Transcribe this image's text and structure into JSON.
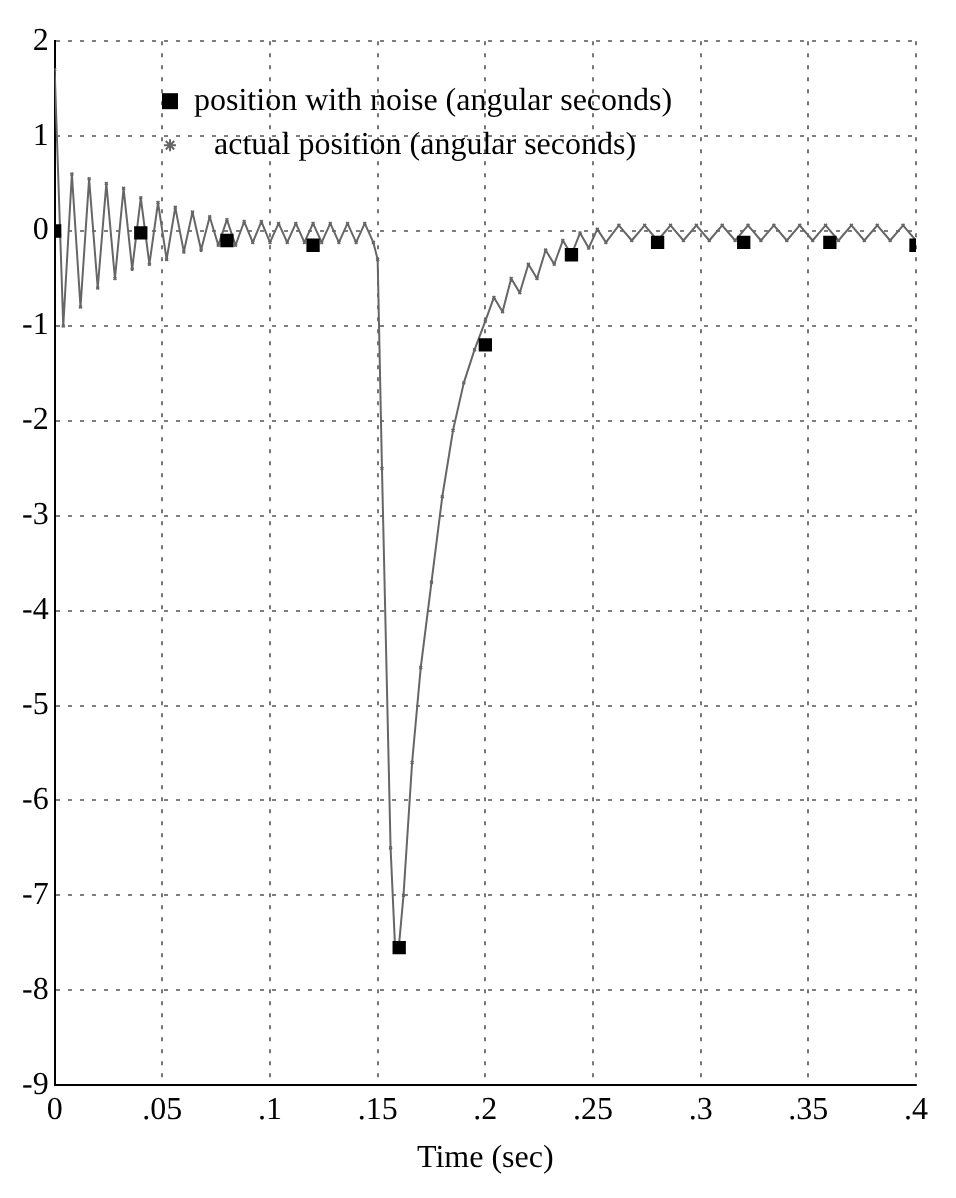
{
  "chart_data": {
    "type": "line",
    "xlabel": "Time (sec)",
    "xlim": [
      0,
      0.4
    ],
    "xticks": [
      0,
      {
        "value": 0.05,
        "label": ".05"
      },
      {
        "value": 0.1,
        "label": ".1"
      },
      {
        "value": 0.15,
        "label": ".15"
      },
      {
        "value": 0.2,
        "label": ".2"
      },
      {
        "value": 0.25,
        "label": ".25"
      },
      {
        "value": 0.3,
        "label": ".3"
      },
      {
        "value": 0.35,
        "label": ".35"
      },
      {
        "value": 0.4,
        "label": ".4"
      }
    ],
    "ylim": [
      -9,
      2
    ],
    "yticks": [
      -9,
      -8,
      -7,
      -6,
      -5,
      -4,
      -3,
      -2,
      -1,
      0,
      1,
      2
    ],
    "grid": true,
    "legend": "top left",
    "series": [
      {
        "name": "position with noise (angular seconds)",
        "type": "scatter",
        "marker": "square",
        "color": "#000000",
        "x": [
          0,
          0.04,
          0.08,
          0.12,
          0.16,
          0.2,
          0.24,
          0.28,
          0.32,
          0.36,
          0.4
        ],
        "values": [
          0,
          -0.02,
          -0.1,
          -0.15,
          -7.55,
          -1.2,
          -0.25,
          -0.12,
          -0.12,
          -0.12,
          -0.15
        ]
      },
      {
        "name": "actual position (angular seconds)",
        "type": "line",
        "marker": "cross",
        "line_style": "solid",
        "color": "#666666",
        "x": [
          0,
          0.004,
          0.008,
          0.012,
          0.016,
          0.02,
          0.024,
          0.028,
          0.032,
          0.036,
          0.04,
          0.044,
          0.048,
          0.052,
          0.056,
          0.06,
          0.064,
          0.068,
          0.072,
          0.076,
          0.08,
          0.084,
          0.088,
          0.092,
          0.096,
          0.1,
          0.104,
          0.108,
          0.112,
          0.116,
          0.12,
          0.124,
          0.128,
          0.132,
          0.136,
          0.14,
          0.144,
          0.148,
          0.15,
          0.152,
          0.156,
          0.158,
          0.16,
          0.162,
          0.166,
          0.17,
          0.175,
          0.18,
          0.185,
          0.19,
          0.195,
          0.2,
          0.204,
          0.208,
          0.212,
          0.216,
          0.22,
          0.224,
          0.228,
          0.232,
          0.236,
          0.24,
          0.244,
          0.248,
          0.252,
          0.256,
          0.262,
          0.268,
          0.274,
          0.28,
          0.286,
          0.292,
          0.298,
          0.304,
          0.31,
          0.316,
          0.322,
          0.328,
          0.334,
          0.34,
          0.346,
          0.352,
          0.358,
          0.364,
          0.37,
          0.376,
          0.382,
          0.388,
          0.394,
          0.4
        ],
        "values": [
          1.7,
          -1.0,
          0.6,
          -0.8,
          0.55,
          -0.6,
          0.5,
          -0.5,
          0.45,
          -0.4,
          0.35,
          -0.35,
          0.3,
          -0.3,
          0.25,
          -0.22,
          0.2,
          -0.2,
          0.15,
          -0.15,
          0.12,
          -0.15,
          0.1,
          -0.12,
          0.1,
          -0.12,
          0.08,
          -0.12,
          0.08,
          -0.12,
          0.08,
          -0.12,
          0.08,
          -0.12,
          0.08,
          -0.12,
          0.08,
          -0.12,
          -0.3,
          -2.5,
          -6.5,
          -7.5,
          -7.5,
          -7,
          -5.6,
          -4.6,
          -3.7,
          -2.8,
          -2.1,
          -1.6,
          -1.25,
          -0.95,
          -0.7,
          -0.85,
          -0.5,
          -0.65,
          -0.35,
          -0.5,
          -0.2,
          -0.35,
          -0.1,
          -0.25,
          -0.02,
          -0.18,
          0.02,
          -0.12,
          0.06,
          -0.1,
          0.06,
          -0.1,
          0.06,
          -0.1,
          0.06,
          -0.1,
          0.06,
          -0.1,
          0.06,
          -0.1,
          0.06,
          -0.1,
          0.06,
          -0.1,
          0.06,
          -0.1,
          0.06,
          -0.1,
          0.06,
          -0.1,
          0.06,
          -0.1
        ]
      }
    ]
  }
}
